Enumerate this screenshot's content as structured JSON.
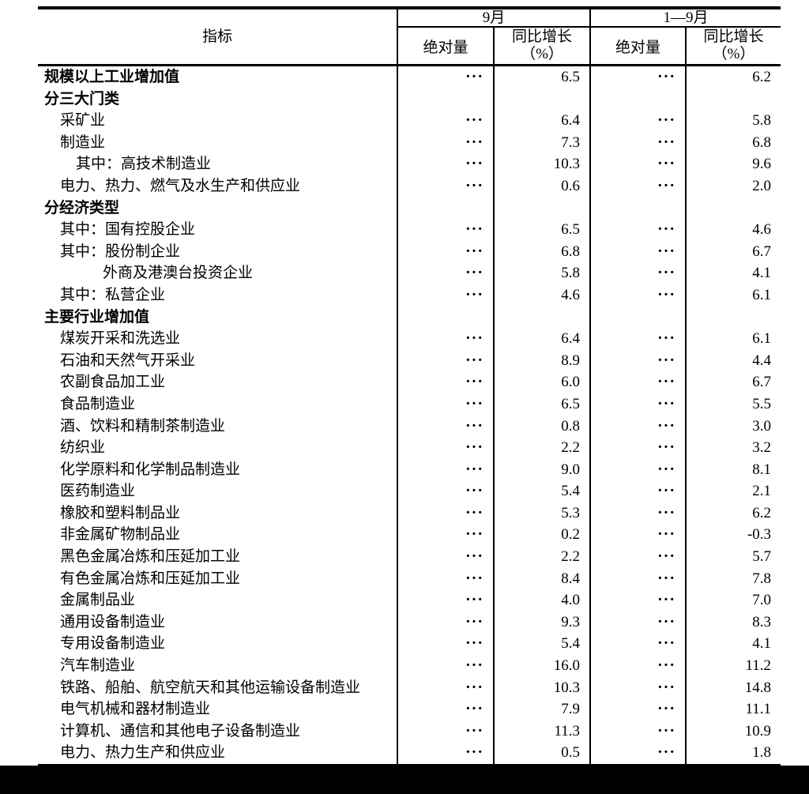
{
  "table": {
    "header": {
      "indicator": "指标",
      "col_month": "9月",
      "col_cum": "1—9月",
      "abs_label": "绝对量",
      "growth_line1": "同比增长",
      "growth_line2": "（%）"
    },
    "ellipsis": "···",
    "rows": [
      {
        "label": "规模以上工业增加值",
        "level": 0,
        "bold": true,
        "m_abs": "···",
        "m_g": "6.5",
        "c_abs": "···",
        "c_g": "6.2"
      },
      {
        "label": "分三大门类",
        "level": 0,
        "bold": true,
        "m_abs": "",
        "m_g": "",
        "c_abs": "",
        "c_g": ""
      },
      {
        "label": "采矿业",
        "level": 1,
        "bold": false,
        "m_abs": "···",
        "m_g": "6.4",
        "c_abs": "···",
        "c_g": "5.8"
      },
      {
        "label": "制造业",
        "level": 1,
        "bold": false,
        "m_abs": "···",
        "m_g": "7.3",
        "c_abs": "···",
        "c_g": "6.8"
      },
      {
        "label": "其中：高技术制造业",
        "level": 2,
        "bold": false,
        "m_abs": "···",
        "m_g": "10.3",
        "c_abs": "···",
        "c_g": "9.6"
      },
      {
        "label": "电力、热力、燃气及水生产和供应业",
        "level": 1,
        "bold": false,
        "m_abs": "···",
        "m_g": "0.6",
        "c_abs": "···",
        "c_g": "2.0"
      },
      {
        "label": "分经济类型",
        "level": 0,
        "bold": true,
        "m_abs": "",
        "m_g": "",
        "c_abs": "",
        "c_g": ""
      },
      {
        "label": "其中：国有控股企业",
        "level": 1,
        "bold": false,
        "m_abs": "···",
        "m_g": "6.5",
        "c_abs": "···",
        "c_g": "4.6"
      },
      {
        "label": "其中：股份制企业",
        "level": 1,
        "bold": false,
        "m_abs": "···",
        "m_g": "6.8",
        "c_abs": "···",
        "c_g": "6.7"
      },
      {
        "label": "外商及港澳台投资企业",
        "level": 3,
        "bold": false,
        "m_abs": "···",
        "m_g": "5.8",
        "c_abs": "···",
        "c_g": "4.1"
      },
      {
        "label": "其中：私营企业",
        "level": 1,
        "bold": false,
        "m_abs": "···",
        "m_g": "4.6",
        "c_abs": "···",
        "c_g": "6.1"
      },
      {
        "label": "主要行业增加值",
        "level": 0,
        "bold": true,
        "m_abs": "",
        "m_g": "",
        "c_abs": "",
        "c_g": ""
      },
      {
        "label": "煤炭开采和洗选业",
        "level": 1,
        "bold": false,
        "m_abs": "···",
        "m_g": "6.4",
        "c_abs": "···",
        "c_g": "6.1"
      },
      {
        "label": "石油和天然气开采业",
        "level": 1,
        "bold": false,
        "m_abs": "···",
        "m_g": "8.9",
        "c_abs": "···",
        "c_g": "4.4"
      },
      {
        "label": "农副食品加工业",
        "level": 1,
        "bold": false,
        "m_abs": "···",
        "m_g": "6.0",
        "c_abs": "···",
        "c_g": "6.7"
      },
      {
        "label": "食品制造业",
        "level": 1,
        "bold": false,
        "m_abs": "···",
        "m_g": "6.5",
        "c_abs": "···",
        "c_g": "5.5"
      },
      {
        "label": "酒、饮料和精制茶制造业",
        "level": 1,
        "bold": false,
        "m_abs": "···",
        "m_g": "0.8",
        "c_abs": "···",
        "c_g": "3.0"
      },
      {
        "label": "纺织业",
        "level": 1,
        "bold": false,
        "m_abs": "···",
        "m_g": "2.2",
        "c_abs": "···",
        "c_g": "3.2"
      },
      {
        "label": "化学原料和化学制品制造业",
        "level": 1,
        "bold": false,
        "m_abs": "···",
        "m_g": "9.0",
        "c_abs": "···",
        "c_g": "8.1"
      },
      {
        "label": "医药制造业",
        "level": 1,
        "bold": false,
        "m_abs": "···",
        "m_g": "5.4",
        "c_abs": "···",
        "c_g": "2.1"
      },
      {
        "label": "橡胶和塑料制品业",
        "level": 1,
        "bold": false,
        "m_abs": "···",
        "m_g": "5.3",
        "c_abs": "···",
        "c_g": "6.2"
      },
      {
        "label": "非金属矿物制品业",
        "level": 1,
        "bold": false,
        "m_abs": "···",
        "m_g": "0.2",
        "c_abs": "···",
        "c_g": "-0.3"
      },
      {
        "label": "黑色金属冶炼和压延加工业",
        "level": 1,
        "bold": false,
        "m_abs": "···",
        "m_g": "2.2",
        "c_abs": "···",
        "c_g": "5.7"
      },
      {
        "label": "有色金属冶炼和压延加工业",
        "level": 1,
        "bold": false,
        "m_abs": "···",
        "m_g": "8.4",
        "c_abs": "···",
        "c_g": "7.8"
      },
      {
        "label": "金属制品业",
        "level": 1,
        "bold": false,
        "m_abs": "···",
        "m_g": "4.0",
        "c_abs": "···",
        "c_g": "7.0"
      },
      {
        "label": "通用设备制造业",
        "level": 1,
        "bold": false,
        "m_abs": "···",
        "m_g": "9.3",
        "c_abs": "···",
        "c_g": "8.3"
      },
      {
        "label": "专用设备制造业",
        "level": 1,
        "bold": false,
        "m_abs": "···",
        "m_g": "5.4",
        "c_abs": "···",
        "c_g": "4.1"
      },
      {
        "label": "汽车制造业",
        "level": 1,
        "bold": false,
        "m_abs": "···",
        "m_g": "16.0",
        "c_abs": "···",
        "c_g": "11.2"
      },
      {
        "label": "铁路、船舶、航空航天和其他运输设备制造业",
        "level": 1,
        "bold": false,
        "m_abs": "···",
        "m_g": "10.3",
        "c_abs": "···",
        "c_g": "14.8"
      },
      {
        "label": "电气机械和器材制造业",
        "level": 1,
        "bold": false,
        "m_abs": "···",
        "m_g": "7.9",
        "c_abs": "···",
        "c_g": "11.1"
      },
      {
        "label": "计算机、通信和其他电子设备制造业",
        "level": 1,
        "bold": false,
        "m_abs": "···",
        "m_g": "11.3",
        "c_abs": "···",
        "c_g": "10.9"
      },
      {
        "label": "电力、热力生产和供应业",
        "level": 1,
        "bold": false,
        "m_abs": "···",
        "m_g": "0.5",
        "c_abs": "···",
        "c_g": "1.8"
      }
    ]
  }
}
